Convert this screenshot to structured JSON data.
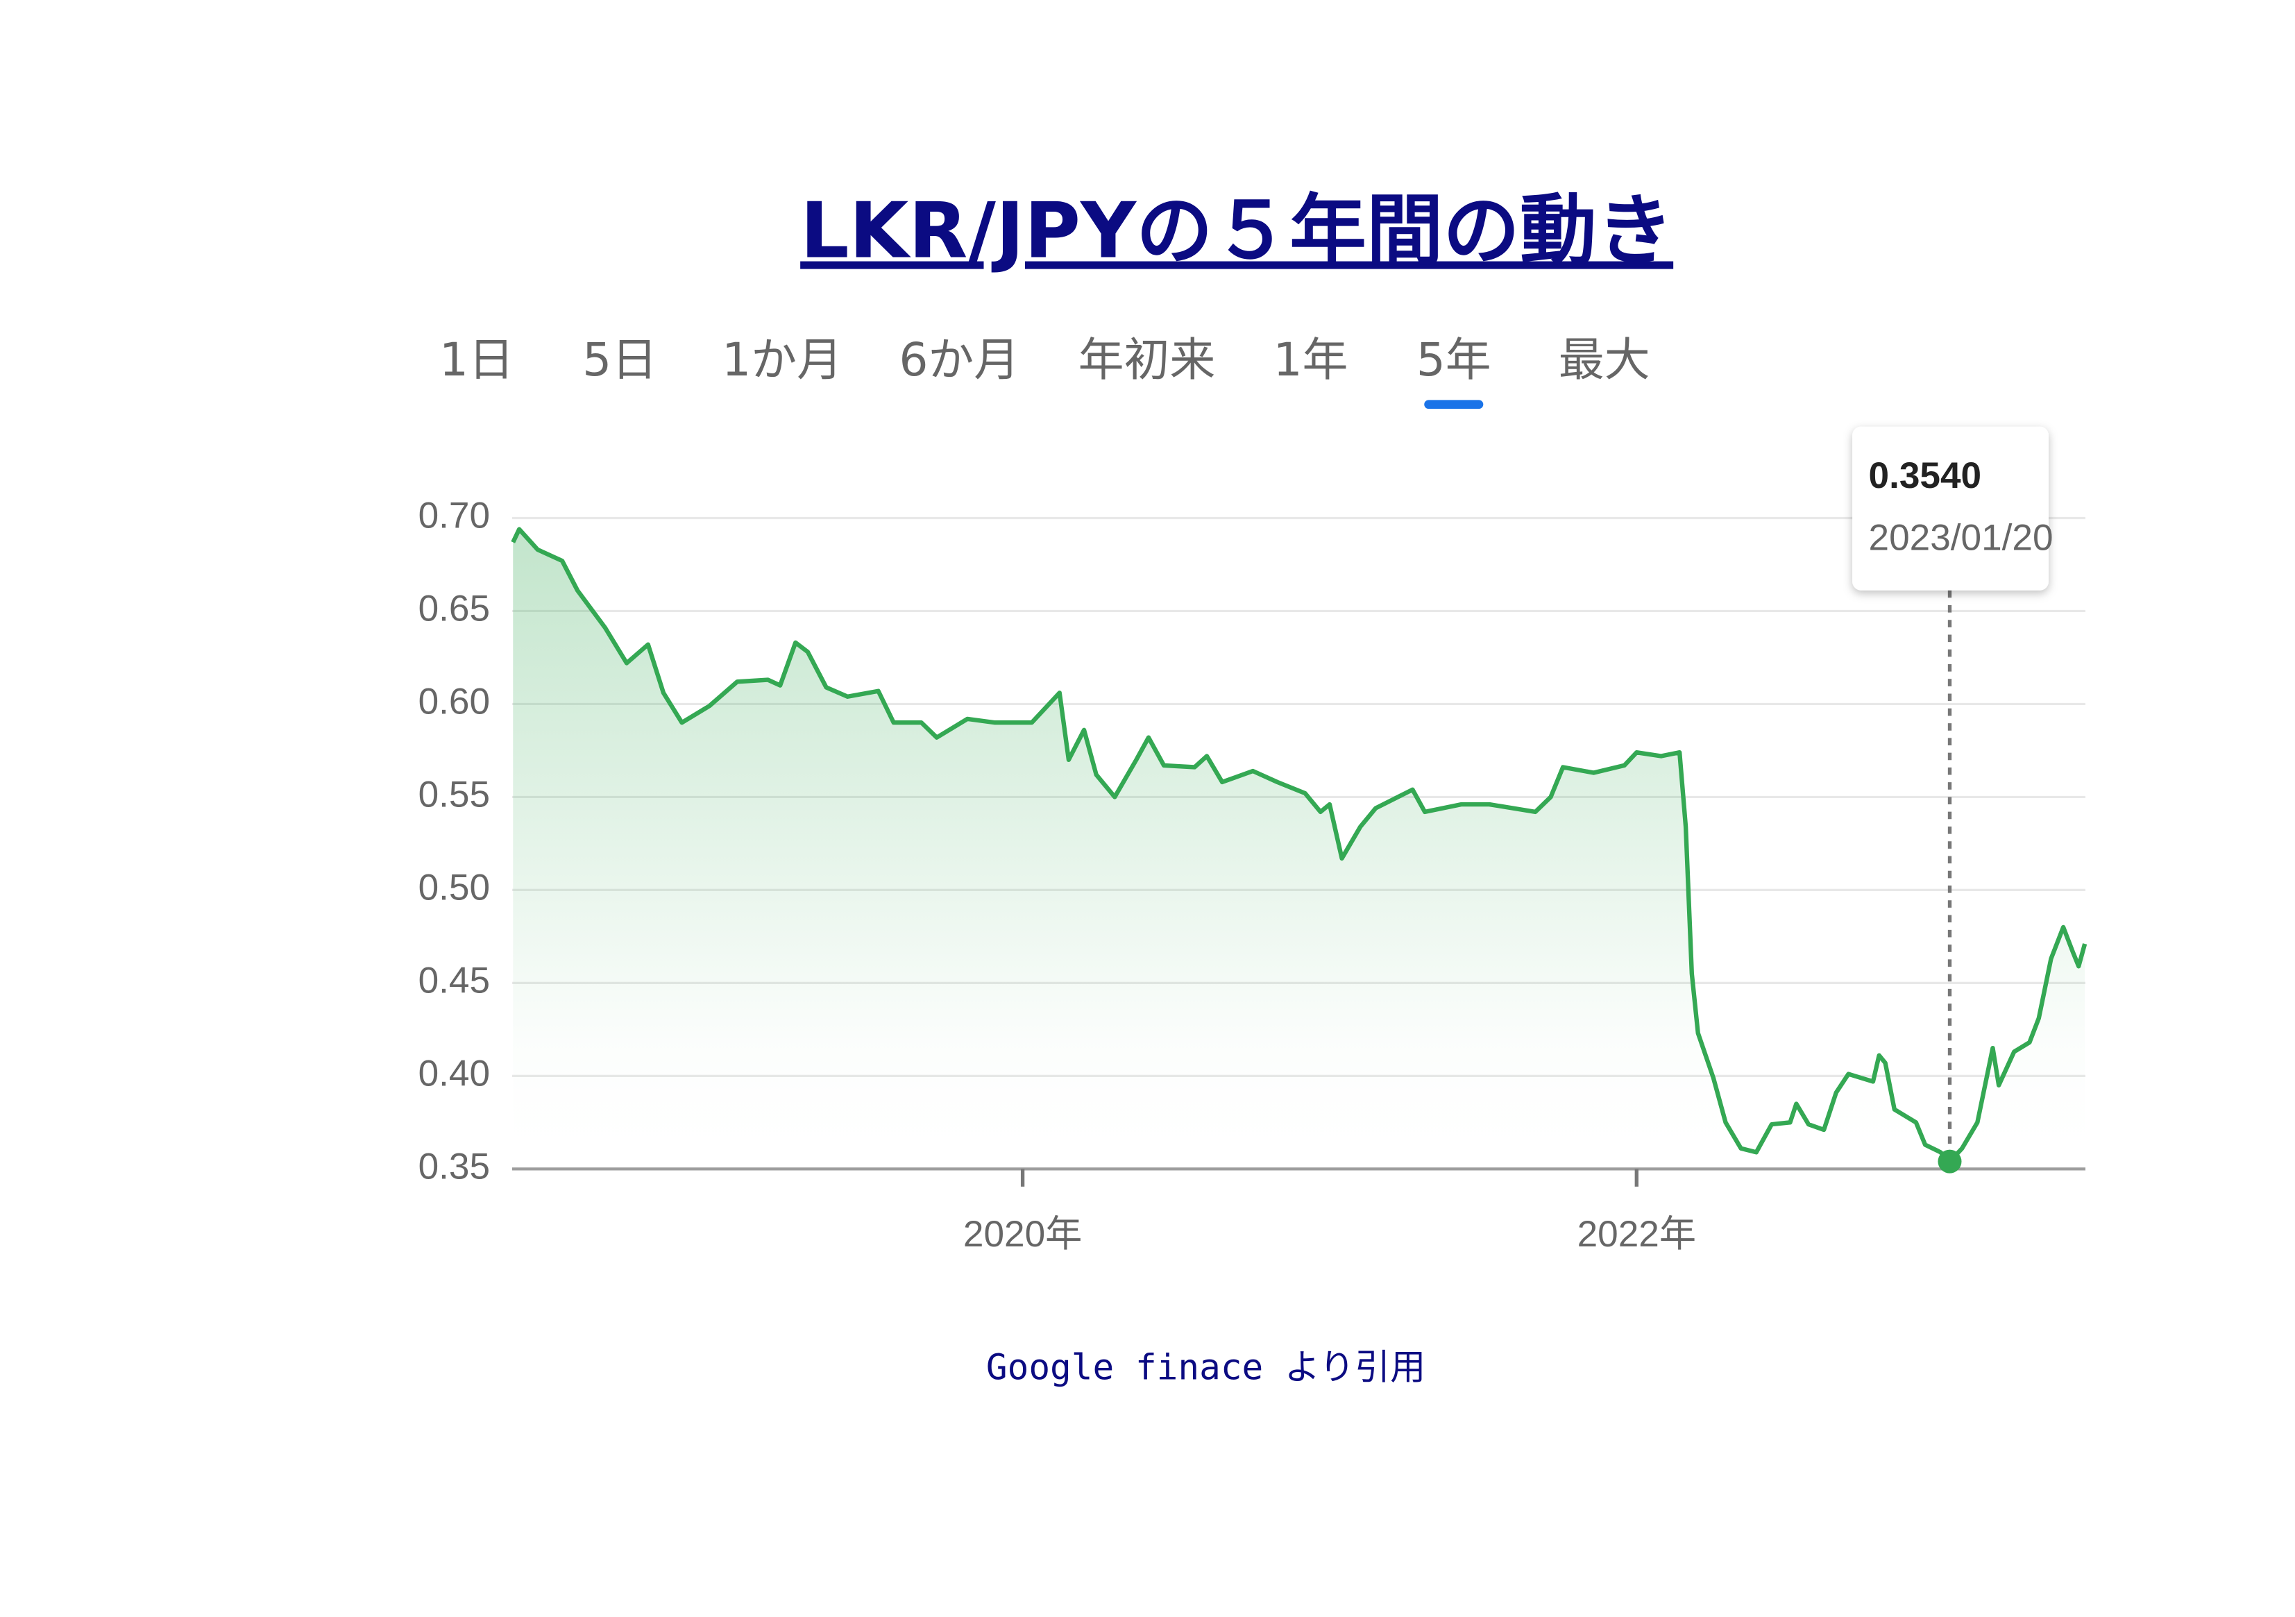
{
  "title": "LKR/JPYの５年間の動き",
  "tabs": {
    "items": [
      "1日",
      "5日",
      "1か月",
      "6か月",
      "年初来",
      "1年",
      "5年",
      "最大"
    ],
    "active": 6,
    "active_color": "#1a73e8"
  },
  "chart_data": {
    "type": "line",
    "x": [
      2018.34,
      2018.36,
      2018.42,
      2018.5,
      2018.55,
      2018.64,
      2018.71,
      2018.78,
      2018.83,
      2018.89,
      2018.98,
      2019.07,
      2019.17,
      2019.21,
      2019.26,
      2019.3,
      2019.36,
      2019.43,
      2019.53,
      2019.58,
      2019.67,
      2019.72,
      2019.82,
      2019.91,
      2020.03,
      2020.12,
      2020.15,
      2020.2,
      2020.24,
      2020.3,
      2020.37,
      2020.41,
      2020.46,
      2020.56,
      2020.6,
      2020.65,
      2020.75,
      2020.83,
      2020.92,
      2020.97,
      2021.0,
      2021.04,
      2021.1,
      2021.15,
      2021.27,
      2021.31,
      2021.43,
      2021.52,
      2021.67,
      2021.72,
      2021.76,
      2021.86,
      2021.96,
      2022.0,
      2022.08,
      2022.14,
      2022.16,
      2022.18,
      2022.2,
      2022.25,
      2022.29,
      2022.34,
      2022.39,
      2022.44,
      2022.5,
      2022.52,
      2022.56,
      2022.61,
      2022.65,
      2022.69,
      2022.77,
      2022.79,
      2022.81,
      2022.84,
      2022.91,
      2022.94,
      2022.99,
      2023.02,
      2023.06,
      2023.11,
      2023.16,
      2023.18,
      2023.23,
      2023.28,
      2023.31,
      2023.35,
      2023.39,
      2023.42,
      2023.44,
      2023.46
    ],
    "series": [
      {
        "color": "#34a853",
        "values": [
          0.687,
          0.694,
          0.683,
          0.677,
          0.661,
          0.641,
          0.622,
          0.632,
          0.606,
          0.59,
          0.599,
          0.612,
          0.613,
          0.61,
          0.633,
          0.628,
          0.609,
          0.604,
          0.607,
          0.59,
          0.59,
          0.582,
          0.592,
          0.59,
          0.59,
          0.606,
          0.57,
          0.586,
          0.562,
          0.55,
          0.57,
          0.582,
          0.567,
          0.566,
          0.572,
          0.558,
          0.564,
          0.558,
          0.552,
          0.542,
          0.546,
          0.517,
          0.534,
          0.544,
          0.554,
          0.542,
          0.546,
          0.546,
          0.542,
          0.55,
          0.566,
          0.563,
          0.567,
          0.574,
          0.572,
          0.574,
          0.534,
          0.455,
          0.423,
          0.399,
          0.375,
          0.361,
          0.359,
          0.374,
          0.375,
          0.385,
          0.374,
          0.371,
          0.391,
          0.401,
          0.397,
          0.411,
          0.407,
          0.382,
          0.375,
          0.363,
          0.359,
          0.354,
          0.361,
          0.375,
          0.415,
          0.395,
          0.413,
          0.418,
          0.431,
          0.463,
          0.48,
          0.467,
          0.459,
          0.471
        ]
      }
    ],
    "xlim": [
      2018.337,
      2023.462
    ],
    "xticks": [
      {
        "value": 2020,
        "label": "2020年"
      },
      {
        "value": 2022,
        "label": "2022年"
      }
    ],
    "ylim": [
      0.35,
      0.7
    ],
    "yticks": [
      {
        "value": 0.7,
        "label": "0.70"
      },
      {
        "value": 0.65,
        "label": "0.65"
      },
      {
        "value": 0.6,
        "label": "0.60"
      },
      {
        "value": 0.55,
        "label": "0.55"
      },
      {
        "value": 0.5,
        "label": "0.50"
      },
      {
        "value": 0.45,
        "label": "0.45"
      },
      {
        "value": 0.4,
        "label": "0.40"
      },
      {
        "value": 0.35,
        "label": "0.35"
      }
    ],
    "grid": true,
    "highlight": {
      "x": 2023.02,
      "value": 0.354,
      "value_label": "0.3540",
      "date_label": "2023/01/20"
    }
  },
  "caption": "Google finace より引用"
}
